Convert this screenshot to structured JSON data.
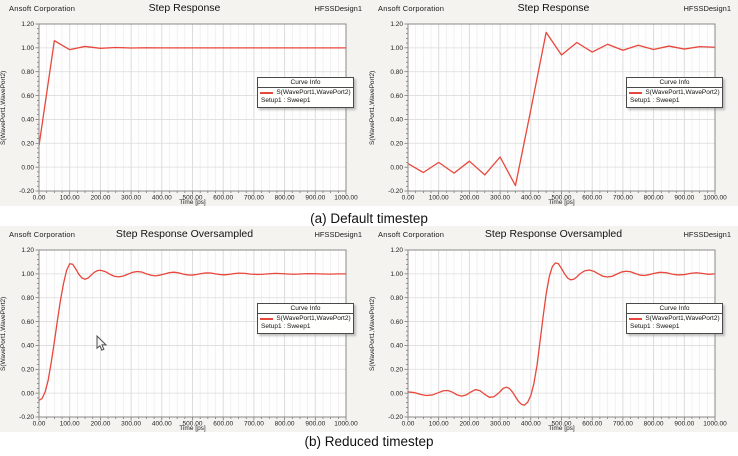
{
  "captions": {
    "a": "(a) Default timestep",
    "b": "(b) Reduced timestep"
  },
  "colors": {
    "curve": "#e8473c",
    "quadrant_bg": "#f4f3f0",
    "plot_bg": "#fefefe",
    "grid_minor": "#ececec",
    "grid_major": "#d9d9d9",
    "grid_horizontal": "#dcdcdc",
    "frame": "#8a8a8a",
    "tick": "#666666"
  },
  "icons": {
    "mouse_cursor": "arrow-pointer"
  },
  "chart_data": [
    {
      "type": "line",
      "position": "top-left",
      "vendor": "Ansoft Corporation",
      "title": "Step Response",
      "design": "HFSSDesign1",
      "xlabel": "Time [ps]",
      "ylabel": "S(WavePort1,WavePort2)",
      "xlim": [
        0,
        1000
      ],
      "ylim": [
        -0.2,
        1.2
      ],
      "x_ticks": [
        "0.00",
        "100.00",
        "200.00",
        "300.00",
        "400.00",
        "500.00",
        "600.00",
        "700.00",
        "800.00",
        "900.00",
        "1000.00"
      ],
      "y_ticks": [
        "1.20",
        "1.00",
        "0.80",
        "0.60",
        "0.40",
        "0.20",
        "0.00",
        "-0.20"
      ],
      "grid": true,
      "legend": {
        "header": "Curve Info",
        "series_label": "S(WavePort1,WavePort2)",
        "setup_label": "Setup1 : Sweep1",
        "location": "right-middle"
      },
      "series": [
        {
          "name": "S(WavePort1,WavePort2)",
          "x": [
            0,
            50,
            100,
            150,
            200,
            250,
            300,
            350,
            400,
            450,
            500,
            550,
            600,
            650,
            700,
            750,
            800,
            850,
            900,
            950,
            1000
          ],
          "y": [
            0.18,
            1.06,
            0.985,
            1.012,
            0.996,
            1.003,
            0.999,
            1.001,
            1.0,
            1.0,
            1.0,
            1.0,
            1.0,
            1.0,
            1.0,
            1.0,
            1.0,
            1.0,
            1.0,
            1.0,
            1.0
          ]
        }
      ]
    },
    {
      "type": "line",
      "position": "top-right",
      "vendor": "Ansoft Corporation",
      "title": "Step Response",
      "design": "HFSSDesign1",
      "xlabel": "Time [ps]",
      "ylabel": "S(WavePort1,WavePort2)",
      "xlim": [
        0,
        1000
      ],
      "ylim": [
        -0.2,
        1.2
      ],
      "x_ticks": [
        "0.00",
        "100.00",
        "200.00",
        "300.00",
        "400.00",
        "500.00",
        "600.00",
        "700.00",
        "800.00",
        "900.00",
        "1000.00"
      ],
      "y_ticks": [
        "1.20",
        "1.00",
        "0.80",
        "0.60",
        "0.40",
        "0.20",
        "0.00",
        "-0.20"
      ],
      "grid": true,
      "legend": {
        "header": "Curve Info",
        "series_label": "S(WavePort1,WavePort2)",
        "setup_label": "Setup1 : Sweep1",
        "location": "right-middle"
      },
      "series": [
        {
          "name": "S(WavePort1,WavePort2)",
          "x": [
            0,
            50,
            100,
            150,
            200,
            250,
            300,
            350,
            400,
            450,
            500,
            550,
            600,
            650,
            700,
            750,
            800,
            850,
            900,
            950,
            1000
          ],
          "y": [
            0.03,
            -0.045,
            0.04,
            -0.05,
            0.05,
            -0.065,
            0.085,
            -0.155,
            0.48,
            1.13,
            0.94,
            1.045,
            0.965,
            1.03,
            0.98,
            1.022,
            0.986,
            1.015,
            0.99,
            1.01,
            1.005
          ]
        }
      ]
    },
    {
      "type": "line",
      "position": "bottom-left",
      "vendor": "Ansoft Corporation",
      "title": "Step Response Oversampled",
      "design": "HFSSDesign1",
      "xlabel": "Time [ps]",
      "ylabel": "S(WavePort1,WavePort2)",
      "xlim": [
        0,
        1000
      ],
      "ylim": [
        -0.2,
        1.2
      ],
      "x_ticks": [
        "0.00",
        "100.00",
        "200.00",
        "300.00",
        "400.00",
        "500.00",
        "600.00",
        "700.00",
        "800.00",
        "900.00",
        "1000.00"
      ],
      "y_ticks": [
        "1.20",
        "1.00",
        "0.80",
        "0.60",
        "0.40",
        "0.20",
        "0.00",
        "-0.20"
      ],
      "grid": true,
      "legend": {
        "header": "Curve Info",
        "series_label": "S(WavePort1,WavePort2)",
        "setup_label": "Setup1 : Sweep1",
        "location": "right-middle"
      },
      "series": [
        {
          "name": "S(WavePort1,WavePort2)",
          "x": [
            0,
            10,
            20,
            30,
            40,
            50,
            60,
            70,
            80,
            90,
            100,
            110,
            120,
            130,
            140,
            150,
            160,
            170,
            180,
            190,
            200,
            215,
            230,
            245,
            260,
            275,
            290,
            305,
            320,
            335,
            350,
            365,
            380,
            395,
            410,
            425,
            440,
            455,
            470,
            485,
            500,
            515,
            530,
            545,
            560,
            575,
            590,
            605,
            620,
            635,
            650,
            670,
            690,
            710,
            730,
            750,
            770,
            790,
            810,
            830,
            850,
            875,
            900,
            925,
            950,
            975,
            1000
          ],
          "y": [
            -0.06,
            -0.045,
            0.01,
            0.11,
            0.26,
            0.43,
            0.61,
            0.78,
            0.92,
            1.03,
            1.085,
            1.08,
            1.04,
            0.995,
            0.965,
            0.955,
            0.965,
            0.99,
            1.013,
            1.027,
            1.03,
            1.02,
            0.998,
            0.98,
            0.975,
            0.982,
            0.998,
            1.013,
            1.02,
            1.015,
            1.0,
            0.988,
            0.983,
            0.99,
            1.0,
            1.01,
            1.014,
            1.008,
            0.998,
            0.991,
            0.99,
            0.996,
            1.003,
            1.008,
            1.007,
            1.0,
            0.994,
            0.992,
            0.996,
            1.002,
            1.006,
            1.004,
            0.998,
            0.995,
            0.997,
            1.001,
            1.004,
            1.002,
            0.999,
            0.997,
            0.999,
            1.002,
            1.001,
            0.999,
            0.998,
            1.0,
            1.0
          ]
        }
      ]
    },
    {
      "type": "line",
      "position": "bottom-right",
      "vendor": "Ansoft Corporation",
      "title": "Step Response Oversampled",
      "design": "HFSSDesign1",
      "xlabel": "Time [ps]",
      "ylabel": "S(WavePort1,WavePort2)",
      "xlim": [
        0,
        1000
      ],
      "ylim": [
        -0.2,
        1.2
      ],
      "x_ticks": [
        "0.00",
        "100.00",
        "200.00",
        "300.00",
        "400.00",
        "500.00",
        "600.00",
        "700.00",
        "800.00",
        "900.00",
        "1000.00"
      ],
      "y_ticks": [
        "1.20",
        "1.00",
        "0.80",
        "0.60",
        "0.40",
        "0.20",
        "0.00",
        "-0.20"
      ],
      "grid": true,
      "legend": {
        "header": "Curve Info",
        "series_label": "S(WavePort1,WavePort2)",
        "setup_label": "Setup1 : Sweep1",
        "location": "right-middle"
      },
      "series": [
        {
          "name": "S(WavePort1,WavePort2)",
          "x": [
            0,
            20,
            40,
            60,
            80,
            100,
            115,
            130,
            145,
            160,
            175,
            190,
            205,
            220,
            235,
            250,
            265,
            280,
            295,
            310,
            320,
            330,
            340,
            350,
            360,
            370,
            380,
            390,
            400,
            410,
            420,
            430,
            440,
            450,
            460,
            470,
            480,
            490,
            500,
            510,
            520,
            530,
            540,
            550,
            560,
            575,
            590,
            605,
            620,
            635,
            650,
            665,
            680,
            695,
            710,
            725,
            740,
            755,
            770,
            785,
            800,
            820,
            840,
            860,
            880,
            900,
            920,
            940,
            960,
            980,
            1000
          ],
          "y": [
            0.01,
            0.005,
            -0.01,
            -0.02,
            -0.015,
            0.005,
            0.02,
            0.022,
            0.008,
            -0.015,
            -0.025,
            -0.015,
            0.01,
            0.03,
            0.02,
            -0.01,
            -0.035,
            -0.03,
            0.0,
            0.04,
            0.05,
            0.04,
            0.01,
            -0.03,
            -0.07,
            -0.095,
            -0.1,
            -0.075,
            -0.02,
            0.08,
            0.23,
            0.43,
            0.64,
            0.83,
            0.975,
            1.06,
            1.092,
            1.085,
            1.045,
            1.0,
            0.965,
            0.95,
            0.955,
            0.975,
            1.0,
            1.025,
            1.032,
            1.022,
            1.0,
            0.98,
            0.974,
            0.98,
            0.998,
            1.015,
            1.022,
            1.018,
            1.003,
            0.99,
            0.986,
            0.993,
            1.003,
            1.013,
            1.01,
            0.998,
            0.991,
            0.994,
            1.004,
            1.009,
            1.003,
            0.996,
            1.0
          ]
        }
      ]
    }
  ]
}
